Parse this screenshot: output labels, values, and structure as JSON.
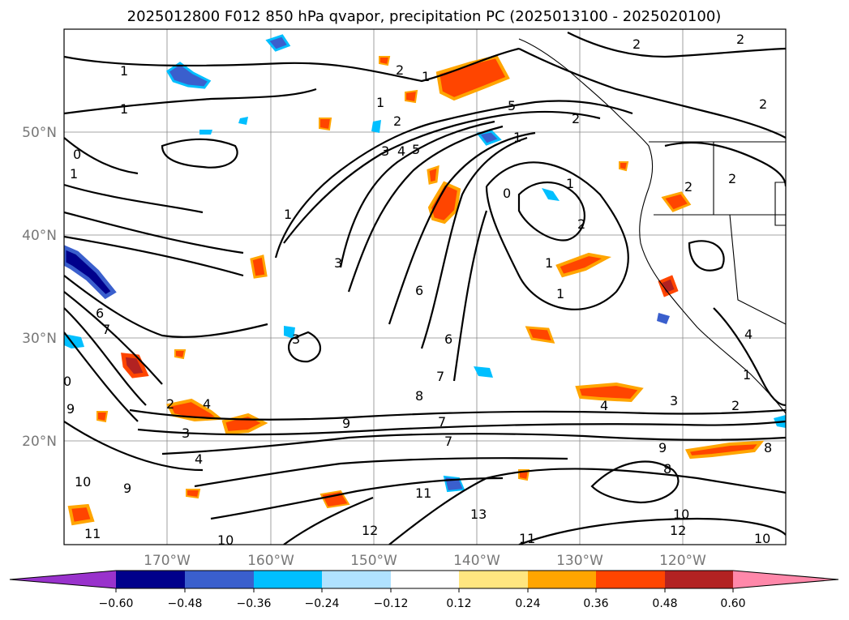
{
  "chart_data": {
    "type": "contour-map",
    "title": "2025012800 F012 850 hPa qvapor, precipitation PC (2025013100 - 2025020100)",
    "lat_ticks": [
      "20°N",
      "30°N",
      "40°N",
      "50°N"
    ],
    "lon_ticks": [
      "170°W",
      "160°W",
      "150°W",
      "140°W",
      "130°W",
      "120°W"
    ],
    "colorbar": {
      "ticks": [
        "−0.60",
        "−0.48",
        "−0.36",
        "−0.24",
        "−0.12",
        "0.12",
        "0.24",
        "0.36",
        "0.48",
        "0.60"
      ],
      "bin_colors": [
        "#9932cc",
        "#00008b",
        "#3a5fcd",
        "#00bfff",
        "#b0e2ff",
        "#ffffff",
        "#ffe680",
        "#ffa500",
        "#ff4500",
        "#b22222",
        "#ff88aa"
      ],
      "extend": "both"
    },
    "contour_labels": [
      "1",
      "2",
      "3",
      "4",
      "5",
      "6",
      "7",
      "8",
      "9",
      "10",
      "11",
      "12",
      "13",
      "0"
    ],
    "grid": true
  }
}
